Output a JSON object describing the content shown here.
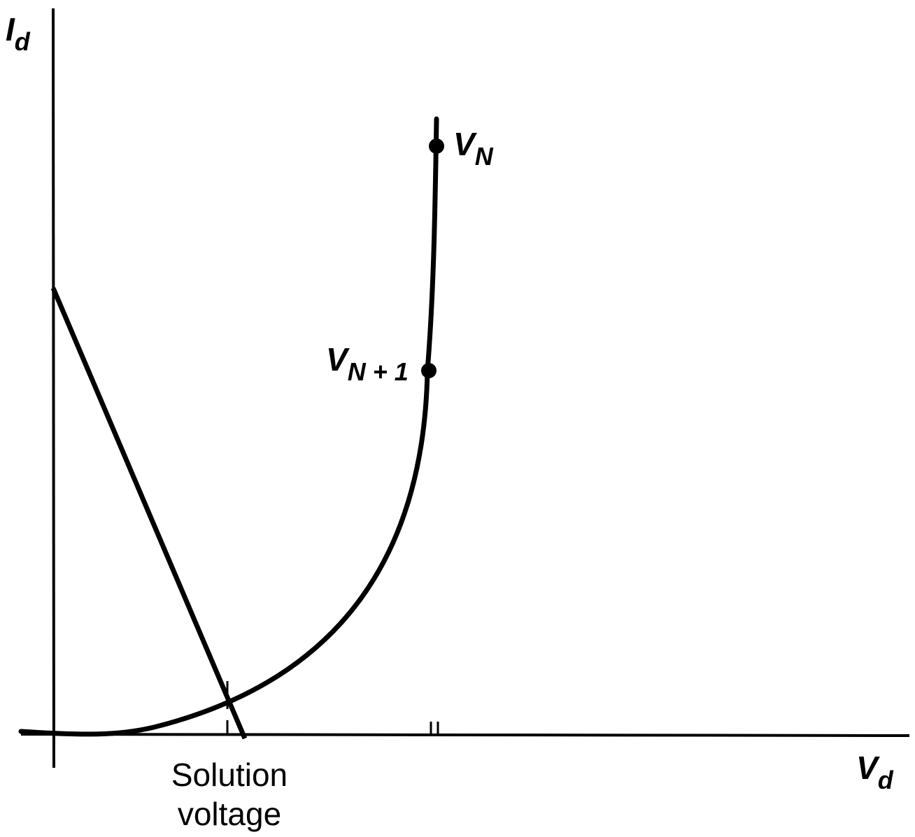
{
  "axes": {
    "y_label": {
      "main": "I",
      "sub": "d"
    },
    "x_label": {
      "main": "V",
      "sub": "d"
    }
  },
  "points": {
    "vn": {
      "main": "V",
      "sub": "N"
    },
    "vn1": {
      "main": "V",
      "sub": "N + 1"
    }
  },
  "annotation": {
    "line1": "Solution",
    "line2": "voltage"
  },
  "colors": {
    "ink": "#000000",
    "background": "#ffffff"
  }
}
